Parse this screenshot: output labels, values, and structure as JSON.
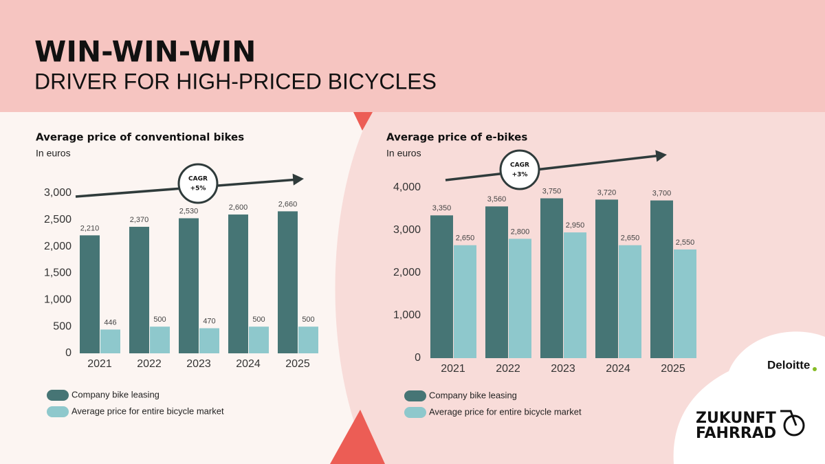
{
  "header": {
    "title": "WIN-WIN-WIN",
    "subtitle": "DRIVER FOR HIGH-PRICED BICYCLES"
  },
  "chart_data": [
    {
      "type": "bar",
      "title": "Average price of conventional bikes",
      "subtitle": "In euros",
      "categories": [
        "2021",
        "2022",
        "2023",
        "2024",
        "2025"
      ],
      "series": [
        {
          "name": "Company bike leasing",
          "color": "#467575",
          "values": [
            2210,
            2370,
            2530,
            2600,
            2660
          ],
          "value_labels": [
            "2,210",
            "2,370",
            "2,530",
            "2,600",
            "2,660"
          ]
        },
        {
          "name": "Average price for entire bicycle market",
          "color": "#8ec8cc",
          "values": [
            446,
            500,
            470,
            500,
            500
          ]
        }
      ],
      "ylim": [
        0,
        3000
      ],
      "yticks": [
        0,
        500,
        {
          "value": 1000,
          "label": "1,000"
        },
        {
          "value": 1500,
          "label": "1,500"
        },
        {
          "value": 2000,
          "label": "2,000"
        },
        {
          "value": 2500,
          "label": "2,500"
        },
        {
          "value": 3000,
          "label": "3,000"
        }
      ],
      "annotation": {
        "label": "CAGR",
        "text": "+5%"
      }
    },
    {
      "type": "bar",
      "title": "Average price of e-bikes",
      "subtitle": "In euros",
      "categories": [
        "2021",
        "2022",
        "2023",
        "2024",
        "2025"
      ],
      "series": [
        {
          "name": "Company bike leasing",
          "color": "#467575",
          "values": [
            3350,
            3560,
            3750,
            3720,
            3700
          ],
          "value_labels": [
            "3,350",
            "3,560",
            "3,750",
            "3,720",
            "3,700"
          ]
        },
        {
          "name": "Average price for entire bicycle market",
          "color": "#8ec8cc",
          "values": [
            2650,
            2800,
            2950,
            2650,
            2550
          ],
          "value_labels": [
            "2,650",
            "2,800",
            "2,950",
            "2,650",
            "2,550"
          ]
        }
      ],
      "ylim": [
        0,
        4000
      ],
      "yticks": [
        0,
        {
          "value": 1000,
          "label": "1,000"
        },
        {
          "value": 2000,
          "label": "2,000"
        },
        {
          "value": 3000,
          "label": "3,000"
        },
        {
          "value": 4000,
          "label": "4,000"
        }
      ],
      "annotation": {
        "label": "CAGR",
        "text": "+3%"
      }
    }
  ],
  "brand": {
    "company": "Deloitte",
    "logo_line1": "ZUKUNFT",
    "logo_line2": "FAHRRAD"
  }
}
